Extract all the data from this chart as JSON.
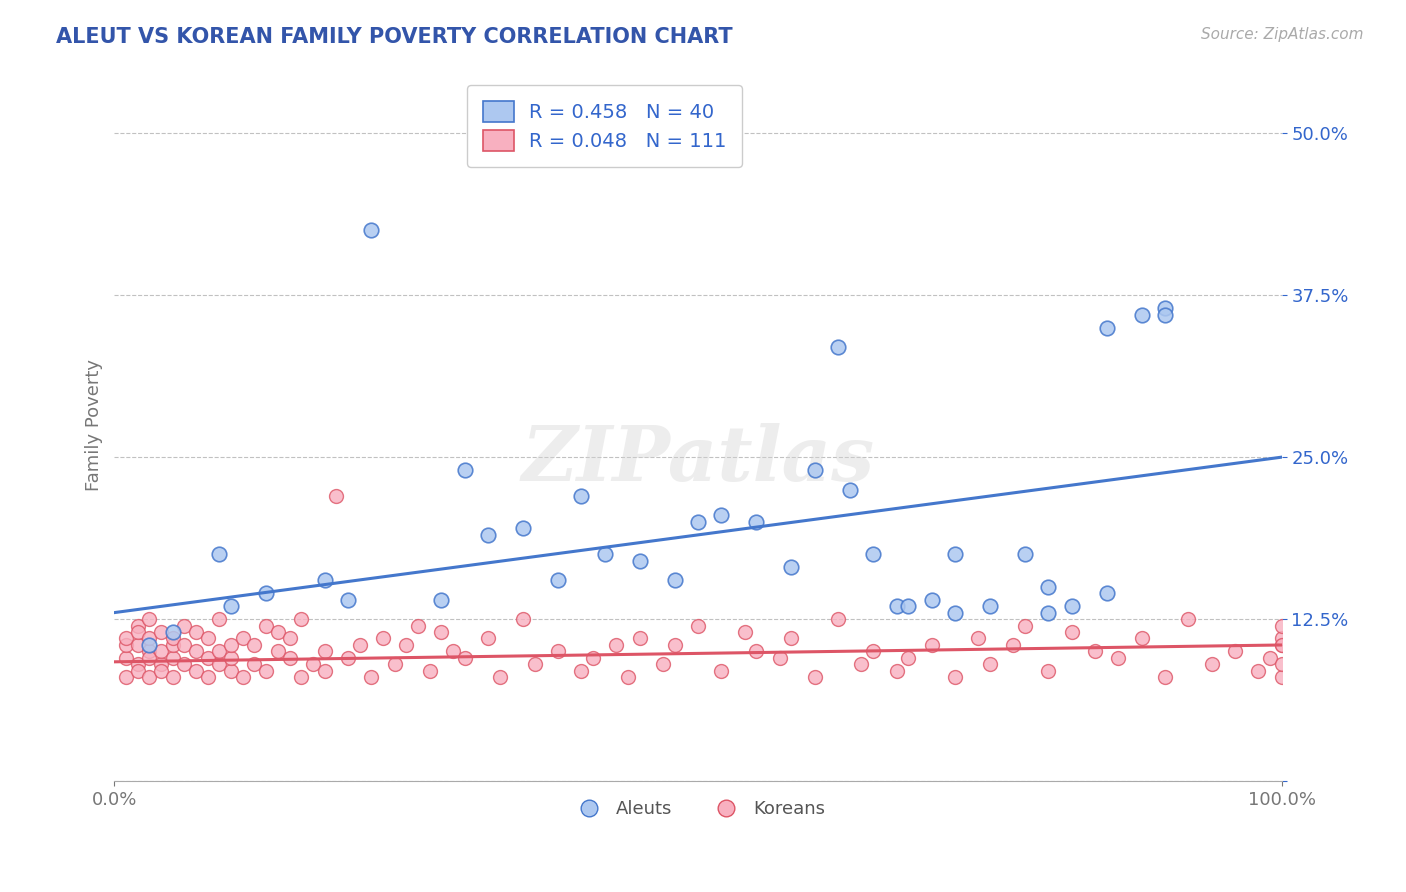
{
  "title": "ALEUT VS KOREAN FAMILY POVERTY CORRELATION CHART",
  "source_text": "Source: ZipAtlas.com",
  "ylabel": "Family Poverty",
  "watermark": "ZIPatlas",
  "xlim": [
    0,
    100
  ],
  "ylim": [
    0,
    55
  ],
  "yticks": [
    0,
    12.5,
    25.0,
    37.5,
    50.0
  ],
  "ytick_labels": [
    "",
    "12.5%",
    "25.0%",
    "37.5%",
    "50.0%"
  ],
  "xtick_labels": [
    "0.0%",
    "100.0%"
  ],
  "aleuts_R": 0.458,
  "aleuts_N": 40,
  "koreans_R": 0.048,
  "koreans_N": 111,
  "aleut_color": "#adc8f0",
  "korean_color": "#f8b0c0",
  "aleut_line_color": "#4477cc",
  "korean_line_color": "#dd5566",
  "legend_text_color": "#3366cc",
  "title_color": "#3355aa",
  "background_color": "#ffffff",
  "grid_color": "#bbbbbb",
  "aleuts_x": [
    5,
    9,
    13,
    18,
    22,
    28,
    32,
    35,
    38,
    40,
    42,
    45,
    48,
    52,
    55,
    58,
    60,
    62,
    65,
    67,
    68,
    70,
    72,
    75,
    78,
    80,
    82,
    85,
    88,
    90,
    3,
    10,
    20,
    30,
    50,
    63,
    72,
    80,
    85,
    90
  ],
  "aleuts_y": [
    11.5,
    17.5,
    14.5,
    15.5,
    42.5,
    14.0,
    19.0,
    19.5,
    15.5,
    22.0,
    17.5,
    17.0,
    15.5,
    20.5,
    20.0,
    16.5,
    24.0,
    33.5,
    17.5,
    13.5,
    13.5,
    14.0,
    17.5,
    13.5,
    17.5,
    15.0,
    13.5,
    14.5,
    36.0,
    36.5,
    10.5,
    13.5,
    14.0,
    24.0,
    20.0,
    22.5,
    13.0,
    13.0,
    35.0,
    36.0
  ],
  "koreans_x": [
    1,
    1,
    1,
    1,
    2,
    2,
    2,
    2,
    2,
    3,
    3,
    3,
    3,
    3,
    4,
    4,
    4,
    4,
    5,
    5,
    5,
    5,
    6,
    6,
    6,
    7,
    7,
    7,
    8,
    8,
    8,
    9,
    9,
    9,
    10,
    10,
    10,
    11,
    11,
    12,
    12,
    13,
    13,
    14,
    14,
    15,
    15,
    16,
    16,
    17,
    18,
    18,
    19,
    20,
    21,
    22,
    23,
    24,
    25,
    26,
    27,
    28,
    29,
    30,
    32,
    33,
    35,
    36,
    38,
    40,
    41,
    43,
    44,
    45,
    47,
    48,
    50,
    52,
    54,
    55,
    57,
    58,
    60,
    62,
    64,
    65,
    67,
    68,
    70,
    72,
    74,
    75,
    77,
    78,
    80,
    82,
    84,
    86,
    88,
    90,
    92,
    94,
    96,
    98,
    99,
    100,
    100,
    100,
    100,
    100,
    100
  ],
  "koreans_y": [
    9.5,
    10.5,
    8.0,
    11.0,
    9.0,
    10.5,
    12.0,
    8.5,
    11.5,
    10.0,
    9.5,
    11.0,
    8.0,
    12.5,
    9.0,
    10.0,
    11.5,
    8.5,
    9.5,
    10.5,
    8.0,
    11.0,
    9.0,
    10.5,
    12.0,
    8.5,
    11.5,
    10.0,
    9.5,
    11.0,
    8.0,
    12.5,
    9.0,
    10.0,
    8.5,
    9.5,
    10.5,
    8.0,
    11.0,
    9.0,
    10.5,
    12.0,
    8.5,
    11.5,
    10.0,
    9.5,
    11.0,
    8.0,
    12.5,
    9.0,
    10.0,
    8.5,
    22.0,
    9.5,
    10.5,
    8.0,
    11.0,
    9.0,
    10.5,
    12.0,
    8.5,
    11.5,
    10.0,
    9.5,
    11.0,
    8.0,
    12.5,
    9.0,
    10.0,
    8.5,
    9.5,
    10.5,
    8.0,
    11.0,
    9.0,
    10.5,
    12.0,
    8.5,
    11.5,
    10.0,
    9.5,
    11.0,
    8.0,
    12.5,
    9.0,
    10.0,
    8.5,
    9.5,
    10.5,
    8.0,
    11.0,
    9.0,
    10.5,
    12.0,
    8.5,
    11.5,
    10.0,
    9.5,
    11.0,
    8.0,
    12.5,
    9.0,
    10.0,
    8.5,
    9.5,
    10.5,
    8.0,
    11.0,
    9.0,
    10.5,
    12.0
  ],
  "aleut_line_x": [
    0,
    100
  ],
  "aleut_line_y": [
    13.0,
    25.0
  ],
  "korean_line_x": [
    0,
    100
  ],
  "korean_line_y": [
    9.2,
    10.5
  ]
}
